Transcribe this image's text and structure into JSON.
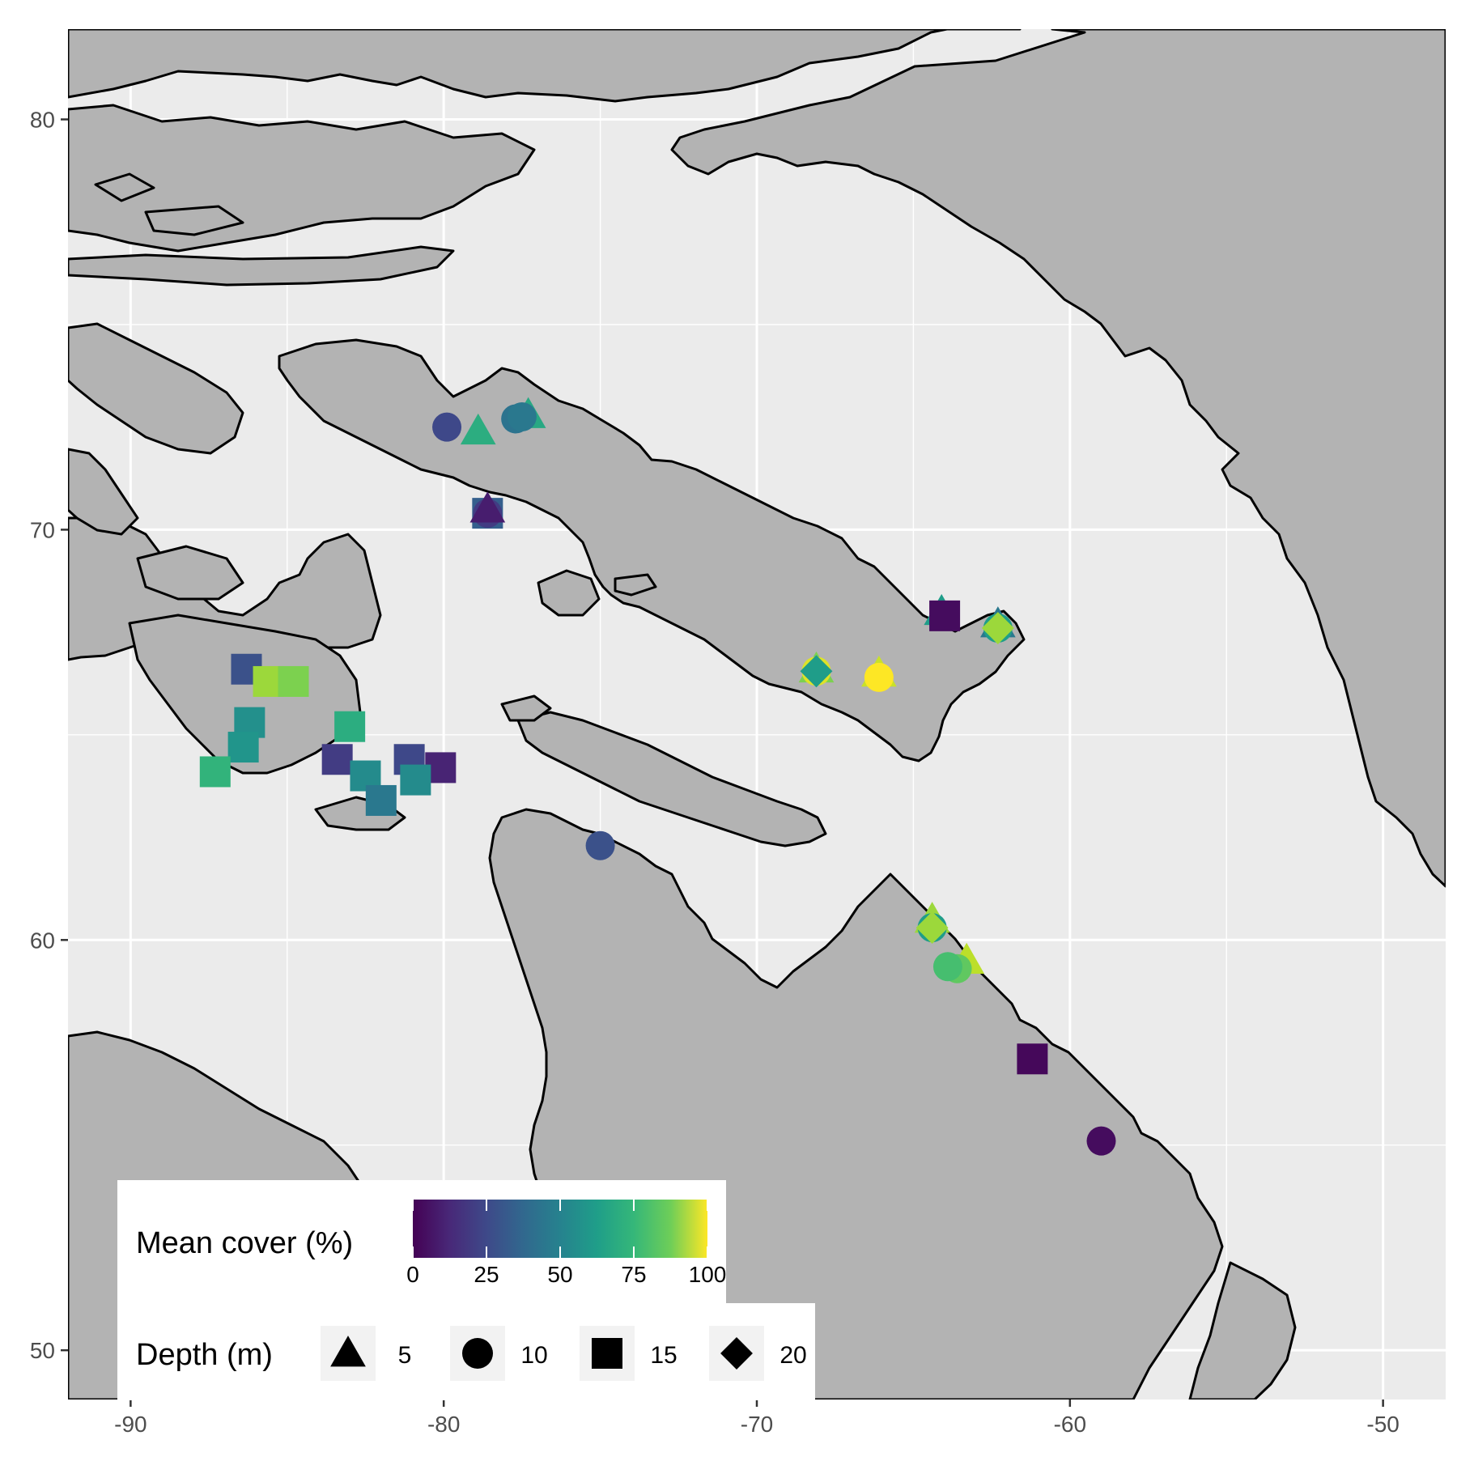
{
  "map": {
    "x_axis": {
      "min": -92,
      "max": -48,
      "ticks": [
        -90,
        -80,
        -70,
        -60,
        -50
      ],
      "tick_labels": [
        "-90",
        "-80",
        "-70",
        "-60",
        "-50"
      ]
    },
    "y_axis": {
      "min": 48.8,
      "max": 82.2,
      "ticks": [
        50,
        60,
        70,
        80
      ],
      "tick_labels": [
        "50",
        "60",
        "70",
        "80"
      ]
    },
    "colors": {
      "panel_background": "#ebebeb",
      "land": "#b3b3b3",
      "coastline": "#000000",
      "gridline": "#ffffff"
    },
    "colorscale": "viridis"
  },
  "legend": {
    "color_title": "Mean cover (%)",
    "color_ticks": [
      0,
      25,
      50,
      75,
      100
    ],
    "color_tick_labels": [
      "0",
      "25",
      "50",
      "75",
      "100"
    ],
    "shape_title": "Depth (m)",
    "shape_entries": [
      {
        "label": "5",
        "shape": "triangle"
      },
      {
        "label": "10",
        "shape": "circle"
      },
      {
        "label": "15",
        "shape": "square"
      },
      {
        "label": "20",
        "shape": "diamond"
      }
    ]
  },
  "chart_data": {
    "type": "scatter",
    "title": "",
    "xlabel": "",
    "ylabel": "",
    "xlim": [
      -92,
      -48
    ],
    "ylim": [
      48.8,
      82.2
    ],
    "grid": true,
    "legend_placement": "bottom-left",
    "points": [
      {
        "lon": -79.9,
        "lat": 72.5,
        "depth": 10,
        "cover": 22
      },
      {
        "lon": -78.9,
        "lat": 72.4,
        "depth": 5,
        "cover": 62
      },
      {
        "lon": -77.3,
        "lat": 72.8,
        "depth": 5,
        "cover": 60
      },
      {
        "lon": -77.7,
        "lat": 72.7,
        "depth": 10,
        "cover": 38
      },
      {
        "lon": -77.5,
        "lat": 72.75,
        "depth": 10,
        "cover": 40
      },
      {
        "lon": -78.6,
        "lat": 70.4,
        "depth": 15,
        "cover": 30
      },
      {
        "lon": -78.6,
        "lat": 70.4,
        "depth": 10,
        "cover": 18
      },
      {
        "lon": -78.6,
        "lat": 70.5,
        "depth": 5,
        "cover": 8
      },
      {
        "lon": -64.1,
        "lat": 68.0,
        "depth": 5,
        "cover": 55
      },
      {
        "lon": -64.0,
        "lat": 67.9,
        "depth": 15,
        "cover": 3
      },
      {
        "lon": -62.3,
        "lat": 67.7,
        "depth": 5,
        "cover": 40
      },
      {
        "lon": -62.3,
        "lat": 67.6,
        "depth": 10,
        "cover": 55
      },
      {
        "lon": -62.3,
        "lat": 67.6,
        "depth": 20,
        "cover": 85
      },
      {
        "lon": -68.1,
        "lat": 66.6,
        "depth": 5,
        "cover": 80
      },
      {
        "lon": -68.1,
        "lat": 66.55,
        "depth": 10,
        "cover": 95
      },
      {
        "lon": -68.1,
        "lat": 66.55,
        "depth": 20,
        "cover": 55
      },
      {
        "lon": -66.1,
        "lat": 66.5,
        "depth": 5,
        "cover": 92
      },
      {
        "lon": -66.1,
        "lat": 66.4,
        "depth": 10,
        "cover": 100
      },
      {
        "lon": -86.3,
        "lat": 66.6,
        "depth": 15,
        "cover": 25
      },
      {
        "lon": -85.6,
        "lat": 66.3,
        "depth": 15,
        "cover": 85
      },
      {
        "lon": -84.8,
        "lat": 66.3,
        "depth": 15,
        "cover": 80
      },
      {
        "lon": -86.2,
        "lat": 65.3,
        "depth": 15,
        "cover": 50
      },
      {
        "lon": -86.4,
        "lat": 64.7,
        "depth": 15,
        "cover": 52
      },
      {
        "lon": -87.3,
        "lat": 64.1,
        "depth": 15,
        "cover": 65
      },
      {
        "lon": -83.0,
        "lat": 65.2,
        "depth": 15,
        "cover": 62
      },
      {
        "lon": -83.4,
        "lat": 64.4,
        "depth": 15,
        "cover": 18
      },
      {
        "lon": -82.5,
        "lat": 64.0,
        "depth": 15,
        "cover": 48
      },
      {
        "lon": -81.1,
        "lat": 64.4,
        "depth": 15,
        "cover": 22
      },
      {
        "lon": -80.1,
        "lat": 64.2,
        "depth": 15,
        "cover": 10
      },
      {
        "lon": -80.9,
        "lat": 63.9,
        "depth": 15,
        "cover": 48
      },
      {
        "lon": -82.0,
        "lat": 63.4,
        "depth": 15,
        "cover": 40
      },
      {
        "lon": -75.0,
        "lat": 62.3,
        "depth": 10,
        "cover": 25
      },
      {
        "lon": -64.4,
        "lat": 60.5,
        "depth": 5,
        "cover": 85
      },
      {
        "lon": -64.4,
        "lat": 60.3,
        "depth": 10,
        "cover": 55
      },
      {
        "lon": -64.4,
        "lat": 60.3,
        "depth": 20,
        "cover": 85
      },
      {
        "lon": -63.3,
        "lat": 59.5,
        "depth": 5,
        "cover": 90
      },
      {
        "lon": -63.6,
        "lat": 59.3,
        "depth": 10,
        "cover": 75
      },
      {
        "lon": -63.9,
        "lat": 59.35,
        "depth": 10,
        "cover": 70
      },
      {
        "lon": -61.2,
        "lat": 57.1,
        "depth": 15,
        "cover": 2
      },
      {
        "lon": -59.0,
        "lat": 55.1,
        "depth": 10,
        "cover": 3
      }
    ]
  }
}
